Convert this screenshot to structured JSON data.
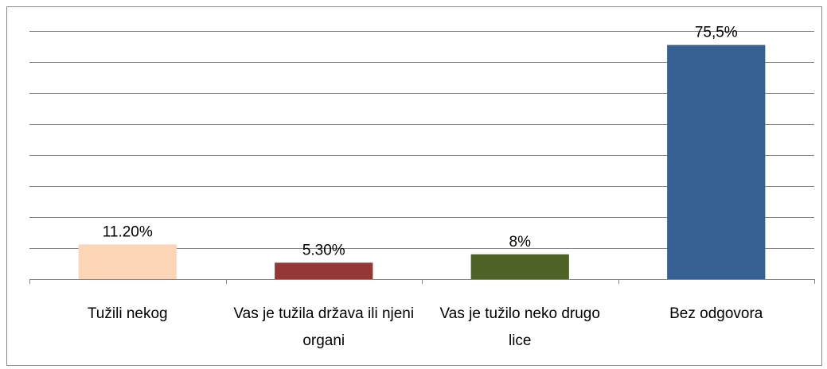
{
  "chart_data": {
    "type": "bar",
    "categories": [
      "Tužili nekog",
      "Vas je tužila država ili njeni organi",
      "Vas je tužilo neko drugo lice",
      "Bez odgovora"
    ],
    "values": [
      11.2,
      5.3,
      8,
      75.5
    ],
    "value_labels": [
      "11.20%",
      "5.30%",
      "8%",
      "75,5%"
    ],
    "colors": [
      "#fbd5b5",
      "#953735",
      "#4f6228",
      "#376092"
    ],
    "ylim": [
      0,
      80
    ],
    "yticks": [
      0,
      10,
      20,
      30,
      40,
      50,
      60,
      70,
      80
    ],
    "grid": true
  }
}
